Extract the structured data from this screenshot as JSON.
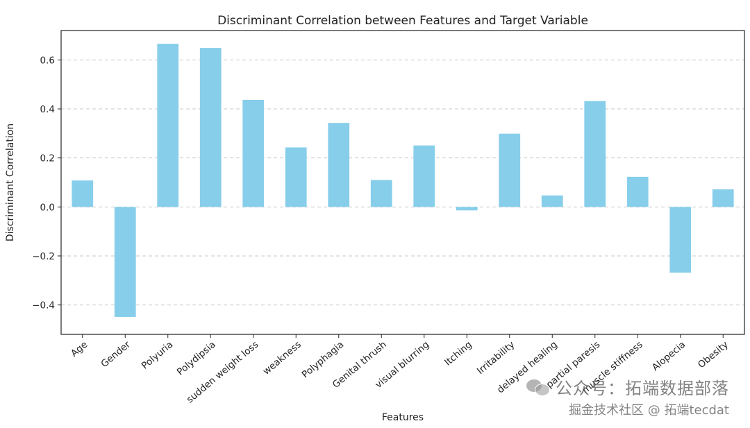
{
  "chart_data": {
    "type": "bar",
    "title": "Discriminant Correlation between Features and Target Variable",
    "xlabel": "Features",
    "ylabel": "Discriminant Correlation",
    "categories": [
      "Age",
      "Gender",
      "Polyuria",
      "Polydipsia",
      "sudden weight loss",
      "weakness",
      "Polyphagia",
      "Genital thrush",
      "visual blurring",
      "Itching",
      "Irritability",
      "delayed healing",
      "partial paresis",
      "muscle stiffness",
      "Alopecia",
      "Obesity"
    ],
    "values": [
      0.108,
      -0.449,
      0.666,
      0.649,
      0.437,
      0.243,
      0.343,
      0.11,
      0.251,
      -0.014,
      0.299,
      0.047,
      0.432,
      0.123,
      -0.268,
      0.072
    ],
    "ylim": [
      -0.52,
      0.72
    ],
    "yticks": [
      -0.4,
      -0.2,
      0.0,
      0.2,
      0.4,
      0.6
    ],
    "ytick_labels": [
      "−0.4",
      "−0.2",
      "0.0",
      "0.2",
      "0.4",
      "0.6"
    ],
    "grid": "y-dashed",
    "bar_color": "#87ceeb",
    "legend": "none"
  },
  "watermark": {
    "line1": "公众号：拓端数据部落",
    "line2": "掘金技术社区 @ 拓端tecdat",
    "icon": "wechat-icon"
  }
}
